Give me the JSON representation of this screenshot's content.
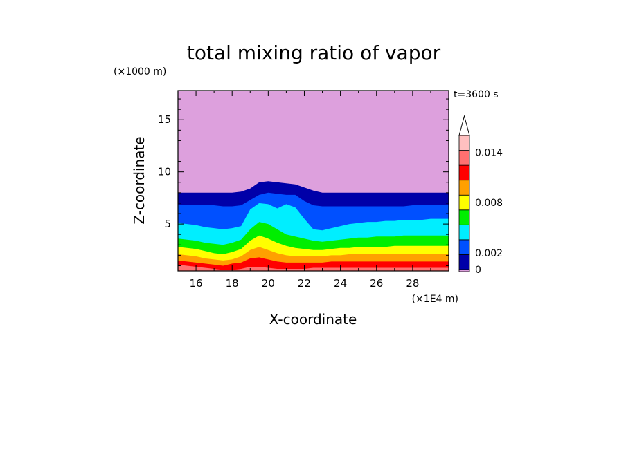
{
  "chart_data": {
    "type": "contour",
    "title": "total mixing ratio of vapor",
    "xlabel": "X-coordinate",
    "ylabel": "Z-coordinate",
    "x_unit": "(×1E4 m)",
    "y_unit": "(×1000 m)",
    "time_label": "t=3600 s",
    "xlim": [
      15,
      30
    ],
    "ylim": [
      0.5,
      17.8
    ],
    "x_ticks": [
      "16",
      "18",
      "20",
      "22",
      "24",
      "26",
      "28"
    ],
    "y_ticks": [
      "5",
      "10",
      "15"
    ],
    "colorbar": {
      "levels": [
        0,
        0.002,
        0.004,
        0.006,
        0.008,
        0.01,
        0.012,
        0.014,
        0.016
      ],
      "tick_labels": [
        "0",
        "0.002",
        "0.008",
        "0.014"
      ],
      "extend": "max",
      "colors": [
        "#dda0dd",
        "#0000a8",
        "#0050ff",
        "#00eeff",
        "#00ee00",
        "#ffff00",
        "#ffa000",
        "#ff0000",
        "#ff7070",
        "#ffc0c0"
      ]
    },
    "layers": [
      {
        "level_index": 0,
        "color": "#dda0dd",
        "boundary_z": [
          17.8,
          17.8,
          17.8,
          17.8,
          17.8,
          17.8,
          17.8,
          17.8,
          17.8,
          17.8,
          17.8,
          17.8,
          17.8,
          17.8,
          17.8,
          17.8,
          17.8,
          17.8,
          17.8,
          17.8,
          17.8,
          17.8,
          17.8,
          17.8,
          17.8,
          17.8,
          17.8,
          17.8,
          17.8,
          17.8,
          17.8
        ]
      },
      {
        "level_index": 1,
        "color": "#0000a8",
        "boundary_z": [
          8.0,
          8.0,
          8.0,
          8.0,
          8.0,
          8.0,
          8.0,
          8.1,
          8.4,
          9.0,
          9.1,
          9.0,
          8.9,
          8.8,
          8.5,
          8.2,
          8.0,
          8.0,
          8.0,
          8.0,
          8.0,
          8.0,
          8.0,
          8.0,
          8.0,
          8.0,
          8.0,
          8.0,
          8.0,
          8.0,
          8.0
        ]
      },
      {
        "level_index": 2,
        "color": "#0050ff",
        "boundary_z": [
          6.8,
          6.8,
          6.8,
          6.8,
          6.8,
          6.7,
          6.7,
          6.8,
          7.3,
          7.8,
          8.0,
          7.9,
          7.8,
          7.8,
          7.2,
          6.8,
          6.7,
          6.7,
          6.7,
          6.7,
          6.7,
          6.7,
          6.7,
          6.7,
          6.7,
          6.7,
          6.8,
          6.8,
          6.8,
          6.8,
          6.8
        ]
      },
      {
        "level_index": 3,
        "color": "#00eeff",
        "boundary_z": [
          5.1,
          5.0,
          4.9,
          4.7,
          4.6,
          4.5,
          4.6,
          4.8,
          6.4,
          7.0,
          6.9,
          6.5,
          6.9,
          6.6,
          5.5,
          4.5,
          4.4,
          4.6,
          4.8,
          5.0,
          5.1,
          5.2,
          5.2,
          5.3,
          5.3,
          5.4,
          5.4,
          5.4,
          5.5,
          5.5,
          5.5
        ]
      },
      {
        "level_index": 4,
        "color": "#00ee00",
        "boundary_z": [
          3.6,
          3.5,
          3.4,
          3.2,
          3.1,
          3.0,
          3.2,
          3.5,
          4.5,
          5.2,
          5.0,
          4.5,
          4.0,
          3.8,
          3.6,
          3.4,
          3.3,
          3.4,
          3.5,
          3.6,
          3.7,
          3.7,
          3.8,
          3.8,
          3.8,
          3.9,
          3.9,
          3.9,
          3.9,
          3.9,
          3.9
        ]
      },
      {
        "level_index": 5,
        "color": "#ffff00",
        "boundary_z": [
          2.8,
          2.7,
          2.6,
          2.4,
          2.2,
          2.1,
          2.3,
          2.6,
          3.4,
          3.9,
          3.6,
          3.2,
          2.9,
          2.7,
          2.6,
          2.5,
          2.5,
          2.6,
          2.7,
          2.7,
          2.8,
          2.8,
          2.8,
          2.8,
          2.9,
          2.9,
          2.9,
          2.9,
          2.9,
          2.9,
          2.9
        ]
      },
      {
        "level_index": 6,
        "color": "#ffa000",
        "boundary_z": [
          2.1,
          2.0,
          1.9,
          1.7,
          1.6,
          1.5,
          1.6,
          1.9,
          2.5,
          2.8,
          2.5,
          2.2,
          2.0,
          1.9,
          1.9,
          1.9,
          1.9,
          2.0,
          2.0,
          2.1,
          2.1,
          2.1,
          2.1,
          2.1,
          2.1,
          2.1,
          2.1,
          2.1,
          2.1,
          2.1,
          2.1
        ]
      },
      {
        "level_index": 7,
        "color": "#ff0000",
        "boundary_z": [
          1.5,
          1.4,
          1.3,
          1.2,
          1.1,
          1.0,
          1.2,
          1.3,
          1.7,
          1.8,
          1.6,
          1.4,
          1.3,
          1.3,
          1.3,
          1.3,
          1.3,
          1.4,
          1.4,
          1.4,
          1.4,
          1.4,
          1.4,
          1.4,
          1.4,
          1.4,
          1.4,
          1.4,
          1.4,
          1.4,
          1.4
        ]
      },
      {
        "level_index": 8,
        "color": "#ff7070",
        "boundary_z": [
          1.1,
          1.0,
          0.9,
          0.8,
          0.7,
          0.6,
          0.6,
          0.7,
          0.9,
          0.9,
          0.8,
          0.7,
          0.7,
          0.7,
          0.7,
          0.8,
          0.8,
          0.8,
          0.8,
          0.8,
          0.8,
          0.8,
          0.8,
          0.8,
          0.8,
          0.8,
          0.8,
          0.8,
          0.8,
          0.8,
          0.8
        ]
      }
    ],
    "layer_x": [
      15.0,
      15.5,
      16.0,
      16.5,
      17.0,
      17.5,
      18.0,
      18.5,
      19.0,
      19.5,
      20.0,
      20.5,
      21.0,
      21.5,
      22.0,
      22.5,
      23.0,
      23.5,
      24.0,
      24.5,
      25.0,
      25.5,
      26.0,
      26.5,
      27.0,
      27.5,
      28.0,
      28.5,
      29.0,
      29.5,
      30.0
    ]
  }
}
